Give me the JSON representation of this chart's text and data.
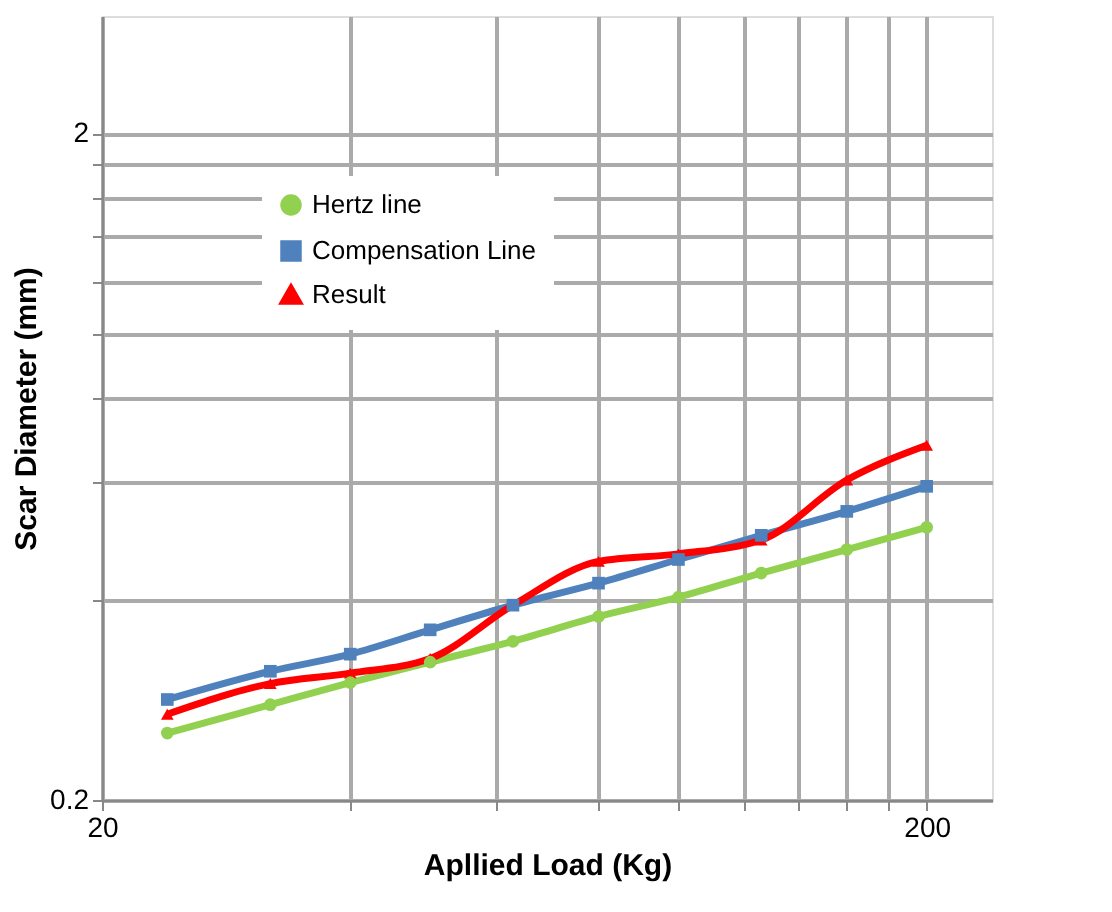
{
  "chart_data": {
    "type": "line",
    "xlabel": "Apllied Load (Kg)",
    "ylabel": "Scar Diameter (mm)",
    "x": [
      24,
      32,
      40,
      50,
      63,
      80,
      100,
      126,
      160,
      200
    ],
    "series": [
      {
        "name": "Hertz line",
        "color": "#92d050",
        "marker": "circle",
        "values": [
          0.252,
          0.278,
          0.3,
          0.322,
          0.346,
          0.377,
          0.403,
          0.438,
          0.475,
          0.513
        ]
      },
      {
        "name": "Compensation Line",
        "color": "#4f81bd",
        "marker": "square",
        "values": [
          0.283,
          0.312,
          0.331,
          0.36,
          0.392,
          0.423,
          0.459,
          0.499,
          0.542,
          0.591
        ]
      },
      {
        "name": "Result",
        "color": "#ff0000",
        "marker": "triangle",
        "values": [
          0.269,
          0.299,
          0.31,
          0.326,
          0.392,
          0.456,
          0.468,
          0.491,
          0.604,
          0.681
        ]
      }
    ],
    "log": "xy",
    "xlim": [
      20,
      240
    ],
    "ylim": [
      0.2,
      3
    ],
    "xticks": [
      20,
      {
        "value": 40,
        "label": null
      },
      {
        "value": 60,
        "label": null
      },
      {
        "value": 80,
        "label": null
      },
      {
        "value": 100,
        "label": null
      },
      {
        "value": 120,
        "label": null
      },
      {
        "value": 140,
        "label": null
      },
      {
        "value": 160,
        "label": null
      },
      {
        "value": 180,
        "label": null
      },
      200
    ],
    "yticks": [
      0.2,
      {
        "value": 0.4,
        "label": null
      },
      {
        "value": 0.6,
        "label": null
      },
      {
        "value": 0.8,
        "label": null
      },
      {
        "value": 1,
        "label": null
      },
      {
        "value": 1.2,
        "label": null
      },
      {
        "value": 1.4,
        "label": null
      },
      {
        "value": 1.6,
        "label": null
      },
      {
        "value": 1.8,
        "label": null
      },
      2
    ],
    "grid": true,
    "legend": "top left",
    "line_style": "solid"
  }
}
